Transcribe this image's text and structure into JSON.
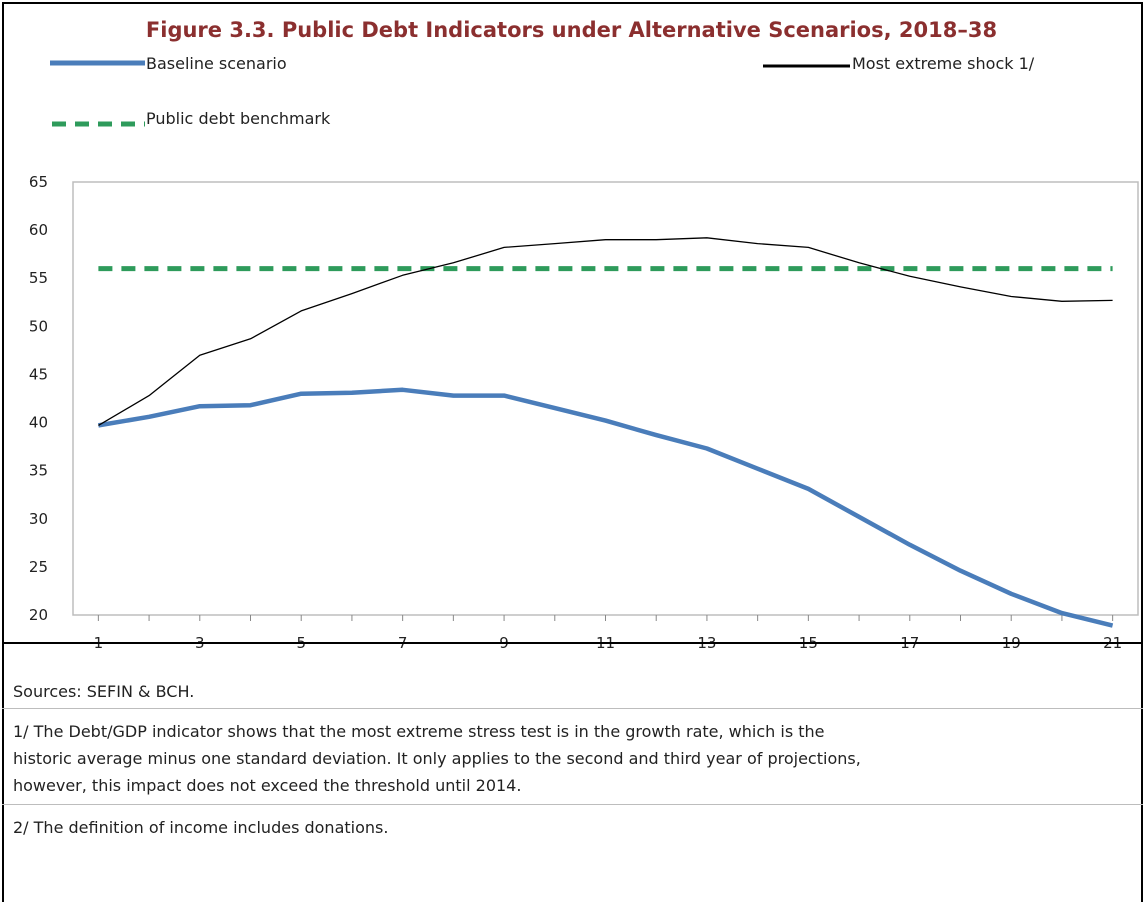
{
  "title": "Figure 3.3. Public Debt Indicators under Alternative Scenarios, 2018–38",
  "legend": [
    {
      "label": "Baseline scenario",
      "color": "#4A7DBA",
      "style": "solid-thick"
    },
    {
      "label": "Most extreme shock 1/",
      "color": "#000000",
      "style": "solid-thin"
    },
    {
      "label": "Public debt benchmark",
      "color": "#2E9B5B",
      "style": "dashed-thick"
    }
  ],
  "chart_data": {
    "type": "line",
    "x": [
      1,
      2,
      3,
      4,
      5,
      6,
      7,
      8,
      9,
      10,
      11,
      12,
      13,
      14,
      15,
      16,
      17,
      18,
      19,
      20,
      21
    ],
    "x_tick_labels": [
      "1",
      "3",
      "5",
      "7",
      "9",
      "11",
      "13",
      "15",
      "17",
      "19",
      "21"
    ],
    "y_tick_labels": [
      "65",
      "60",
      "55",
      "50",
      "45",
      "40",
      "35",
      "30",
      "25",
      "20"
    ],
    "ylim": [
      20,
      65
    ],
    "grid": false,
    "legend_position": "top",
    "series": [
      {
        "name": "Baseline scenario",
        "color": "#4A7DBA",
        "values": [
          39.7,
          40.6,
          41.7,
          41.8,
          43.0,
          43.1,
          43.4,
          42.8,
          42.8,
          41.5,
          40.2,
          38.7,
          37.3,
          35.2,
          33.1,
          30.2,
          27.3,
          24.6,
          22.2,
          20.2,
          18.9
        ]
      },
      {
        "name": "Most extreme shock 1/",
        "color": "#000000",
        "values": [
          39.7,
          42.8,
          47.0,
          48.7,
          51.6,
          53.4,
          55.3,
          56.6,
          58.2,
          58.6,
          59.0,
          59.0,
          59.2,
          58.6,
          58.2,
          56.6,
          55.2,
          54.1,
          53.1,
          52.6,
          52.7
        ]
      },
      {
        "name": "Public debt benchmark",
        "color": "#2E9B5B",
        "values": [
          56,
          56,
          56,
          56,
          56,
          56,
          56,
          56,
          56,
          56,
          56,
          56,
          56,
          56,
          56,
          56,
          56,
          56,
          56,
          56,
          56
        ]
      }
    ]
  },
  "notes": {
    "sources": "Sources: SEFIN & BCH.",
    "note1_line1": "1/ The Debt/GDP indicator shows that the most extreme stress test is in the growth rate, which is the",
    "note1_line2": "historic average minus one standard deviation. It only applies to the second and third year of projections,",
    "note1_line3": "however, this impact does not exceed the threshold until 2014.",
    "note2": "2/ The definition of income includes donations."
  }
}
